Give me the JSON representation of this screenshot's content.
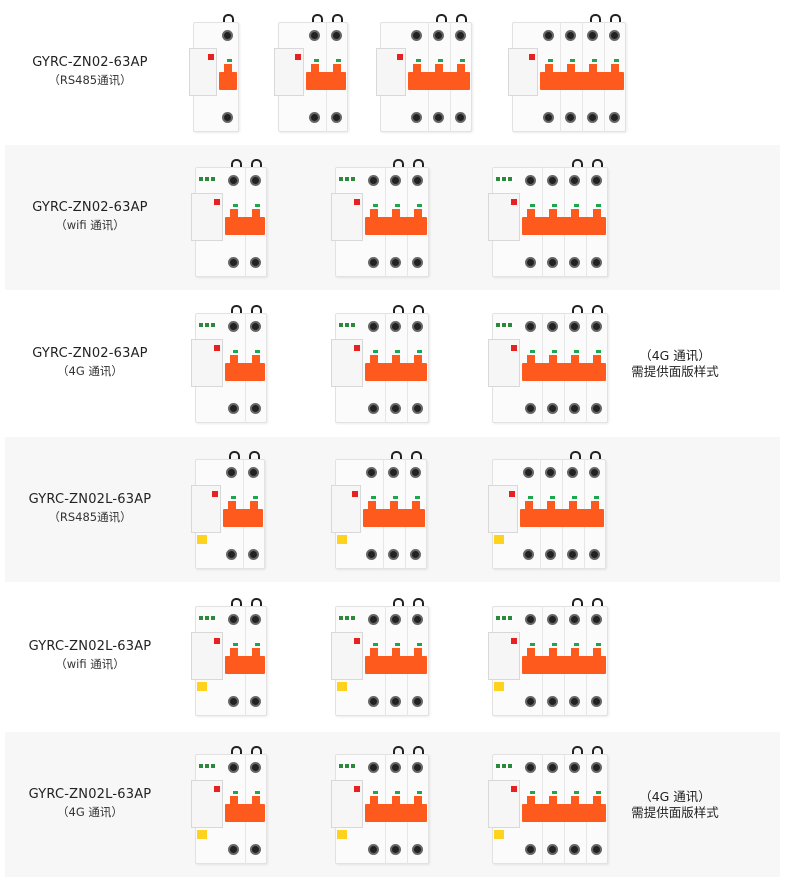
{
  "rows": [
    {
      "model": "GYRC-ZN02-63AP",
      "sub": "（RS485通讯）",
      "note": null,
      "variant": "standard",
      "module": false,
      "products": [
        {
          "poles": 1
        },
        {
          "poles": 2
        },
        {
          "poles": 3
        },
        {
          "poles": 4
        }
      ]
    },
    {
      "model": "GYRC-ZN02-63AP",
      "sub": "（wifi 通讯）",
      "note": null,
      "variant": "standard",
      "module": true,
      "products": [
        {
          "poles": 2
        },
        {
          "poles": 3
        },
        {
          "poles": 4
        }
      ]
    },
    {
      "model": "GYRC-ZN02-63AP",
      "sub": "（4G 通讯）",
      "note": {
        "line1": "（4G 通讯）",
        "line2": "需提供面版样式"
      },
      "variant": "standard",
      "module": true,
      "products": [
        {
          "poles": 2
        },
        {
          "poles": 3
        },
        {
          "poles": 4
        }
      ]
    },
    {
      "model": "GYRC-ZN02L-63AP",
      "sub": "（RS485通讯）",
      "note": null,
      "variant": "L",
      "module": false,
      "products": [
        {
          "poles": 2
        },
        {
          "poles": 3
        },
        {
          "poles": 4
        }
      ]
    },
    {
      "model": "GYRC-ZN02L-63AP",
      "sub": "（wifi 通讯）",
      "note": null,
      "variant": "L",
      "module": true,
      "products": [
        {
          "poles": 2
        },
        {
          "poles": 3
        },
        {
          "poles": 4
        }
      ]
    },
    {
      "model": "GYRC-ZN02L-63AP",
      "sub": "（4G 通讯）",
      "note": {
        "line1": "（4G 通讯）",
        "line2": "需提供面版样式"
      },
      "variant": "L",
      "module": true,
      "products": [
        {
          "poles": 2
        },
        {
          "poles": 3
        },
        {
          "poles": 4
        }
      ]
    }
  ],
  "colors": {
    "handle": "#ff5a1e",
    "led": "#1aa84a",
    "tag": "#ffd21e",
    "row_alt_bg": "#f7f7f7"
  }
}
